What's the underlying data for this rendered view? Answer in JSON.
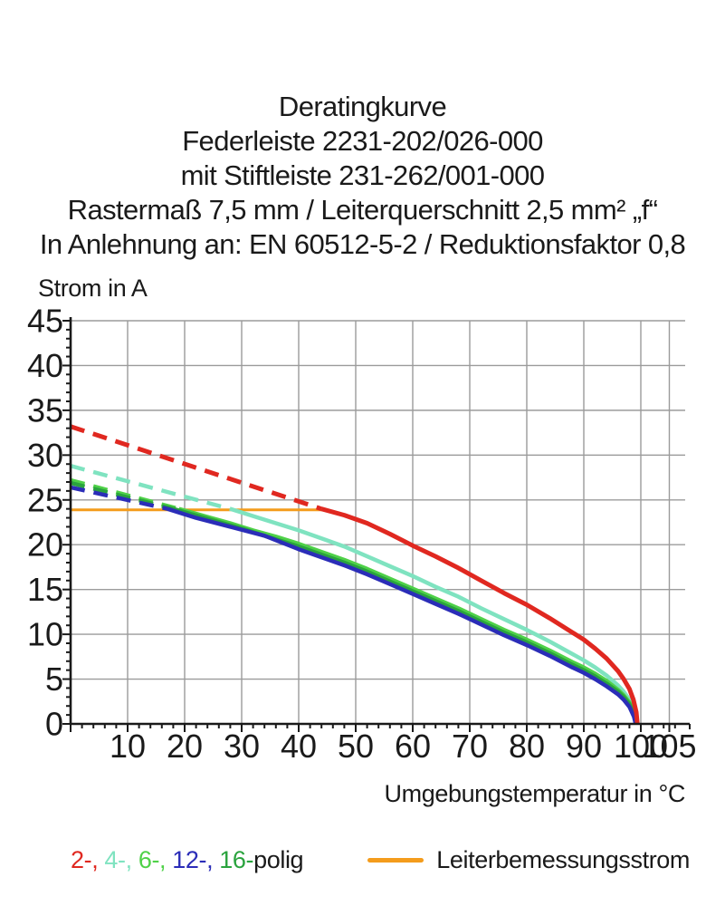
{
  "title": {
    "lines": [
      "Deratingkurve",
      "Federleiste 2231-202/026-000",
      "mit Stiftleiste 231-262/001-000",
      "Rastermaß 7,5 mm / Leiterquerschnitt 2,5 mm² „f“",
      "In Anlehnung an: EN 60512-5-2 / Reduktionsfaktor 0,8"
    ]
  },
  "chart_data": {
    "type": "line",
    "title": "Deratingkurve",
    "xlabel": "Umgebungstemperatur in °C",
    "ylabel": "Strom in A",
    "xlim": [
      0,
      105
    ],
    "ylim": [
      0,
      45
    ],
    "x_major_ticks": [
      10,
      20,
      30,
      40,
      50,
      60,
      70,
      80,
      90,
      100,
      105
    ],
    "y_major_ticks": [
      0,
      5,
      10,
      15,
      20,
      25,
      30,
      35,
      40,
      45
    ],
    "x_minor_step": 2,
    "y_minor_step": 1,
    "grid": true,
    "axis_color": "#1a1a1a",
    "grid_color": "#9b9b9b",
    "legend_position": "bottom",
    "rated_current_A": 24,
    "series": [
      {
        "name": "Leiterbemessungsstrom",
        "color": "#f49c1c",
        "width": 3,
        "solid_points": [
          [
            0,
            23.9
          ],
          [
            44.5,
            23.9
          ]
        ]
      },
      {
        "name": "4-polig",
        "color": "#7fe3c0",
        "width": 4.5,
        "dashed_points": [
          [
            0,
            28.8
          ],
          [
            28,
            24
          ]
        ],
        "solid_points": [
          [
            28,
            24
          ],
          [
            32,
            23.2
          ],
          [
            36,
            22.4
          ],
          [
            40,
            21.6
          ],
          [
            44,
            20.7
          ],
          [
            48,
            19.8
          ],
          [
            52,
            18.7
          ],
          [
            56,
            17.6
          ],
          [
            60,
            16.5
          ],
          [
            64,
            15.3
          ],
          [
            68,
            14.2
          ],
          [
            72,
            12.9
          ],
          [
            76,
            11.7
          ],
          [
            80,
            10.5
          ],
          [
            84,
            9.2
          ],
          [
            88,
            7.8
          ],
          [
            90,
            7.1
          ],
          [
            92,
            6.3
          ],
          [
            94,
            5.4
          ],
          [
            96,
            4.3
          ],
          [
            97,
            3.6
          ],
          [
            98,
            2.7
          ],
          [
            98.8,
            1.4
          ],
          [
            99.2,
            0
          ]
        ]
      },
      {
        "name": "6-polig",
        "color": "#4fd148",
        "width": 4.5,
        "dashed_points": [
          [
            0,
            27.2
          ],
          [
            19,
            24
          ]
        ],
        "solid_points": [
          [
            19,
            24
          ],
          [
            24,
            23.1
          ],
          [
            28,
            22.4
          ],
          [
            32,
            21.6
          ],
          [
            36,
            20.9
          ],
          [
            40,
            20.1
          ],
          [
            44,
            19.2
          ],
          [
            48,
            18.3
          ],
          [
            52,
            17.3
          ],
          [
            56,
            16.2
          ],
          [
            60,
            15.1
          ],
          [
            64,
            14.0
          ],
          [
            68,
            12.9
          ],
          [
            72,
            11.7
          ],
          [
            76,
            10.5
          ],
          [
            80,
            9.4
          ],
          [
            84,
            8.2
          ],
          [
            88,
            6.9
          ],
          [
            90,
            6.3
          ],
          [
            92,
            5.6
          ],
          [
            94,
            4.8
          ],
          [
            96,
            3.8
          ],
          [
            97,
            3.2
          ],
          [
            98,
            2.4
          ],
          [
            98.8,
            1.2
          ],
          [
            99.2,
            0
          ]
        ]
      },
      {
        "name": "16-polig",
        "color": "#2aa33e",
        "width": 4.5,
        "dashed_points": [
          [
            0,
            26.9
          ],
          [
            18,
            24
          ]
        ],
        "solid_points": [
          [
            18,
            24
          ],
          [
            24,
            22.9
          ],
          [
            30,
            21.8
          ],
          [
            36,
            20.6
          ],
          [
            40,
            19.8
          ],
          [
            44,
            18.9
          ],
          [
            48,
            18.0
          ],
          [
            52,
            17.0
          ],
          [
            56,
            15.9
          ],
          [
            60,
            14.8
          ],
          [
            64,
            13.7
          ],
          [
            68,
            12.6
          ],
          [
            72,
            11.4
          ],
          [
            76,
            10.2
          ],
          [
            80,
            9.1
          ],
          [
            84,
            7.9
          ],
          [
            88,
            6.6
          ],
          [
            90,
            6.0
          ],
          [
            92,
            5.3
          ],
          [
            94,
            4.5
          ],
          [
            96,
            3.6
          ],
          [
            97,
            3.0
          ],
          [
            98,
            2.2
          ],
          [
            98.8,
            1.0
          ],
          [
            99.15,
            0
          ]
        ]
      },
      {
        "name": "12-polig",
        "color": "#2b2db8",
        "width": 4.5,
        "dashed_points": [
          [
            0,
            26.4
          ],
          [
            17,
            24
          ]
        ],
        "solid_points": [
          [
            17,
            24
          ],
          [
            22,
            23.0
          ],
          [
            28,
            22.0
          ],
          [
            34,
            21.0
          ],
          [
            40,
            19.5
          ],
          [
            44,
            18.6
          ],
          [
            48,
            17.7
          ],
          [
            52,
            16.7
          ],
          [
            56,
            15.6
          ],
          [
            60,
            14.5
          ],
          [
            64,
            13.4
          ],
          [
            68,
            12.3
          ],
          [
            72,
            11.1
          ],
          [
            76,
            9.9
          ],
          [
            80,
            8.8
          ],
          [
            84,
            7.6
          ],
          [
            88,
            6.3
          ],
          [
            90,
            5.7
          ],
          [
            92,
            5.0
          ],
          [
            94,
            4.2
          ],
          [
            96,
            3.3
          ],
          [
            97,
            2.7
          ],
          [
            98,
            1.9
          ],
          [
            98.8,
            0.8
          ],
          [
            99.1,
            0
          ]
        ]
      },
      {
        "name": "2-polig",
        "color": "#e02820",
        "width": 5,
        "dashed_points": [
          [
            0,
            33.2
          ],
          [
            44,
            24
          ]
        ],
        "solid_points": [
          [
            44,
            24
          ],
          [
            48,
            23.3
          ],
          [
            52,
            22.4
          ],
          [
            56,
            21.2
          ],
          [
            60,
            19.9
          ],
          [
            64,
            18.7
          ],
          [
            68,
            17.4
          ],
          [
            72,
            16.0
          ],
          [
            76,
            14.6
          ],
          [
            80,
            13.3
          ],
          [
            84,
            11.8
          ],
          [
            88,
            10.2
          ],
          [
            90,
            9.4
          ],
          [
            92,
            8.4
          ],
          [
            94,
            7.3
          ],
          [
            96,
            5.9
          ],
          [
            97,
            5.0
          ],
          [
            98,
            3.9
          ],
          [
            98.7,
            2.7
          ],
          [
            99.2,
            1.3
          ],
          [
            99.4,
            0
          ]
        ]
      }
    ]
  },
  "legend": {
    "poles": [
      {
        "text": "2-, ",
        "color": "#e02820"
      },
      {
        "text": "4-, ",
        "color": "#7fe3c0"
      },
      {
        "text": "6-, ",
        "color": "#4fd148"
      },
      {
        "text": "12-, ",
        "color": "#2b2db8"
      },
      {
        "text": "16-",
        "color": "#2aa33e"
      },
      {
        "text": "polig",
        "color": "#1a1a1a"
      }
    ],
    "rated_label": "Leiterbemessungsstrom",
    "rated_color": "#f49c1c"
  }
}
